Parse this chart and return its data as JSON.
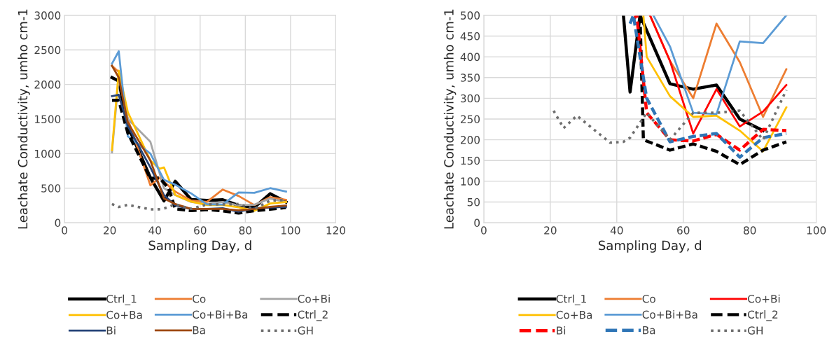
{
  "chart_data": [
    {
      "type": "line",
      "xlabel": "Sampling Day, d",
      "ylabel": "Leachate Conductivity, umho cm-1",
      "xlim": [
        0,
        120
      ],
      "xticks": [
        0,
        20,
        40,
        60,
        80,
        100,
        120
      ],
      "ylim": [
        0,
        3000
      ],
      "yticks": [
        0,
        500,
        1000,
        1500,
        2000,
        2500,
        3000
      ],
      "grid": true,
      "legend": "bottom",
      "marker": "none",
      "series": [
        {
          "name": "Ctrl_1",
          "color": "#000000",
          "line_style": "solid",
          "x": [
            21,
            24,
            28,
            38,
            44,
            49,
            56,
            63,
            70,
            77,
            84,
            91,
            98
          ],
          "values": [
            2100,
            2050,
            1400,
            650,
            315,
            600,
            335,
            322,
            332,
            250,
            222,
            420,
            300
          ]
        },
        {
          "name": "Co",
          "color": "#ed7d31",
          "line_style": "solid",
          "x": [
            21,
            24,
            28,
            38,
            42,
            49,
            56,
            63,
            70,
            77,
            84,
            91,
            98
          ],
          "values": [
            2270,
            2180,
            1500,
            540,
            650,
            450,
            320,
            300,
            480,
            387,
            255,
            370,
            330
          ]
        },
        {
          "name": "Co+Bi",
          "color": "#a5a5a5",
          "line_style": "solid",
          "x": [
            21,
            24,
            28,
            38,
            44,
            49,
            56,
            63,
            70,
            77,
            84,
            91,
            98
          ],
          "values": [
            1020,
            2100,
            1500,
            1170,
            500,
            400,
            300,
            270,
            300,
            250,
            260,
            350,
            300
          ]
        },
        {
          "name": "Co+Ba",
          "color": "#ffc000",
          "line_style": "solid",
          "x": [
            21,
            24,
            28,
            38,
            42,
            44,
            49,
            56,
            63,
            70,
            77,
            84,
            91,
            98
          ],
          "values": [
            1050,
            2200,
            1600,
            900,
            780,
            800,
            400,
            305,
            255,
            258,
            222,
            172,
            278,
            300
          ]
        },
        {
          "name": "Co+Bi+Ba",
          "color": "#5b9bd5",
          "line_style": "solid",
          "x": [
            21,
            24,
            28,
            38,
            44,
            49,
            56,
            63,
            70,
            77,
            84,
            91,
            98
          ],
          "values": [
            2300,
            2480,
            1250,
            1000,
            620,
            550,
            425,
            265,
            262,
            437,
            433,
            500,
            450
          ]
        },
        {
          "name": "Ctrl_2",
          "color": "#000000",
          "line_style": "dashed",
          "x": [
            21,
            24,
            28,
            38,
            42,
            46,
            49,
            56,
            63,
            70,
            77,
            84,
            91,
            98
          ],
          "values": [
            1770,
            1770,
            1300,
            640,
            650,
            500,
            200,
            175,
            190,
            172,
            140,
            175,
            195,
            220
          ]
        },
        {
          "name": "Bi",
          "color": "#264478",
          "line_style": "solid",
          "x": [
            21,
            24,
            28,
            38,
            44,
            49,
            56,
            63,
            70,
            77,
            84,
            91,
            98
          ],
          "values": [
            1830,
            1850,
            1400,
            800,
            400,
            250,
            200,
            200,
            210,
            160,
            210,
            220,
            230
          ]
        },
        {
          "name": "Ba",
          "color": "#9e480e",
          "line_style": "solid",
          "x": [
            21,
            24,
            28,
            38,
            44,
            49,
            56,
            63,
            70,
            77,
            84,
            91,
            98
          ],
          "values": [
            2270,
            2100,
            1450,
            900,
            350,
            270,
            200,
            200,
            200,
            180,
            200,
            230,
            250
          ]
        },
        {
          "name": "GH",
          "color": "#6e6e6e",
          "line_style": "dotted",
          "x": [
            21,
            24,
            28,
            38,
            42,
            44,
            49,
            56,
            63,
            70,
            77,
            84,
            91,
            98
          ],
          "values": [
            270,
            228,
            258,
            193,
            195,
            205,
            265,
            200,
            265,
            265,
            270,
            200,
            320,
            330
          ]
        }
      ]
    },
    {
      "type": "line",
      "xlabel": "Sampling Day, d",
      "ylabel": "Leachate Conductivity, umho cm-1",
      "xlim": [
        0,
        100
      ],
      "xticks": [
        0,
        20,
        40,
        60,
        80,
        100
      ],
      "ylim": [
        0,
        500
      ],
      "yticks": [
        0,
        50,
        100,
        150,
        200,
        250,
        300,
        350,
        400,
        450,
        500
      ],
      "grid": true,
      "legend": "bottom",
      "marker": "none",
      "series": [
        {
          "name": "Ctrl_1",
          "color": "#000000",
          "line_style": "solid",
          "x": [
            42,
            44,
            47,
            56,
            63,
            70,
            77,
            84
          ],
          "values": [
            500,
            315,
            500,
            335,
            322,
            332,
            250,
            222
          ]
        },
        {
          "name": "Co",
          "color": "#ed7d31",
          "line_style": "solid",
          "x": [
            50,
            56,
            63,
            70,
            77,
            84,
            91
          ],
          "values": [
            500,
            390,
            300,
            480,
            387,
            255,
            370
          ]
        },
        {
          "name": "Co+Bi",
          "color": "#ff0000",
          "line_style": "solid",
          "x": [
            50,
            56,
            63,
            70,
            77,
            84,
            91
          ],
          "values": [
            500,
            390,
            215,
            322,
            232,
            268,
            332
          ]
        },
        {
          "name": "Co+Ba",
          "color": "#ffc000",
          "line_style": "solid",
          "x": [
            48,
            49,
            56,
            63,
            70,
            77,
            84,
            91
          ],
          "values": [
            500,
            400,
            305,
            255,
            258,
            222,
            172,
            278
          ]
        },
        {
          "name": "Co+Bi+Ba",
          "color": "#5b9bd5",
          "line_style": "solid",
          "x": [
            51,
            56,
            63,
            70,
            77,
            84,
            91
          ],
          "values": [
            500,
            425,
            265,
            262,
            437,
            433,
            500
          ]
        },
        {
          "name": "Ctrl_2",
          "color": "#000000",
          "line_style": "dashed",
          "x": [
            47,
            48,
            56,
            63,
            70,
            77,
            84,
            91
          ],
          "values": [
            500,
            200,
            175,
            190,
            172,
            140,
            175,
            195
          ]
        },
        {
          "name": "Bi",
          "color": "#ff0000",
          "line_style": "dashed",
          "x": [
            45,
            46,
            49,
            56,
            63,
            70,
            77,
            84,
            91
          ],
          "values": [
            490,
            500,
            265,
            200,
            197,
            213,
            175,
            225,
            222
          ]
        },
        {
          "name": "Ba",
          "color": "#2e75b6",
          "line_style": "dashed",
          "x": [
            44,
            45,
            49,
            56,
            63,
            70,
            77,
            84,
            91
          ],
          "values": [
            480,
            500,
            300,
            195,
            208,
            215,
            158,
            205,
            215
          ]
        },
        {
          "name": "GH",
          "color": "#6e6e6e",
          "line_style": "dotted",
          "x": [
            21,
            24,
            28,
            38,
            42,
            44,
            49,
            56,
            63,
            70,
            77,
            84,
            91
          ],
          "values": [
            270,
            228,
            258,
            193,
            195,
            205,
            265,
            200,
            265,
            265,
            270,
            200,
            320
          ]
        }
      ]
    }
  ]
}
